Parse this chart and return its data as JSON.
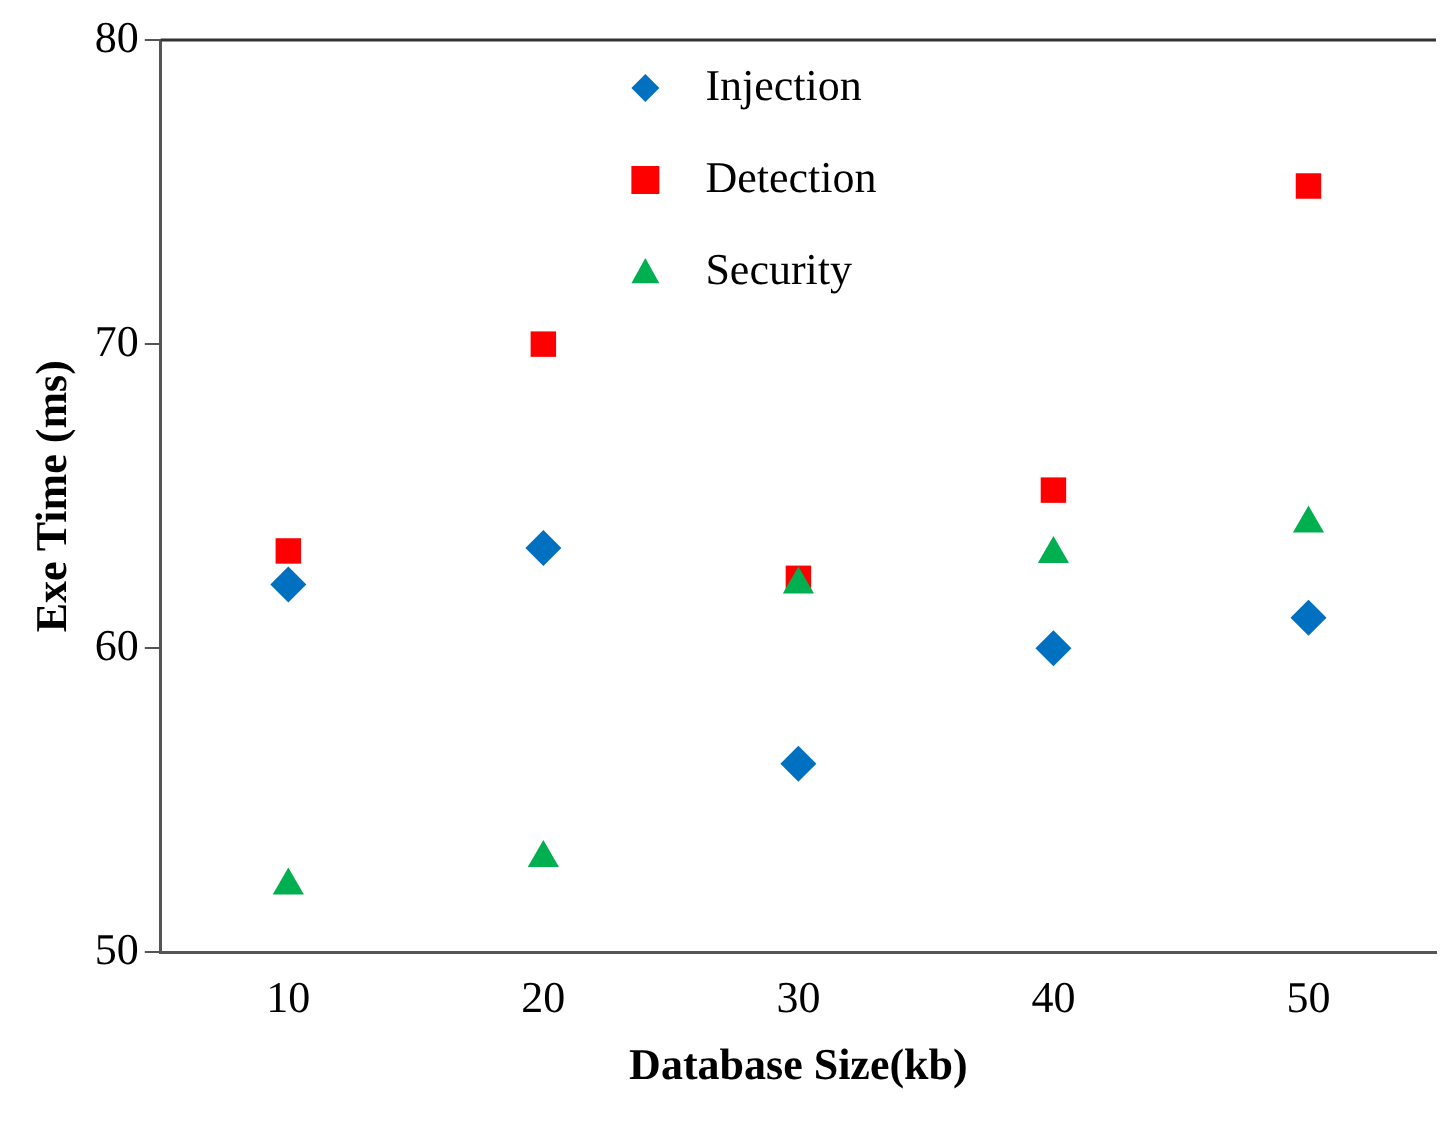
{
  "chart_data": {
    "type": "scatter",
    "xlabel": "Database Size(kb)",
    "ylabel": "Exe Time (ms)",
    "categories": [
      "10",
      "20",
      "30",
      "40",
      "50"
    ],
    "series": [
      {
        "name": "Injection",
        "color": "#0070c0",
        "marker": "diamond",
        "values": [
          62.1,
          63.3,
          56.2,
          60.0,
          61.0
        ]
      },
      {
        "name": "Detection",
        "color": "#ff0000",
        "marker": "square",
        "values": [
          63.2,
          70.0,
          62.3,
          65.2,
          75.2
        ]
      },
      {
        "name": "Security",
        "color": "#00b050",
        "marker": "triangle",
        "values": [
          52.2,
          53.1,
          62.1,
          63.1,
          64.1
        ]
      }
    ],
    "ylim": [
      50,
      80
    ],
    "yticks": [
      50,
      60,
      70,
      80
    ],
    "grid": false,
    "legend": "top"
  }
}
